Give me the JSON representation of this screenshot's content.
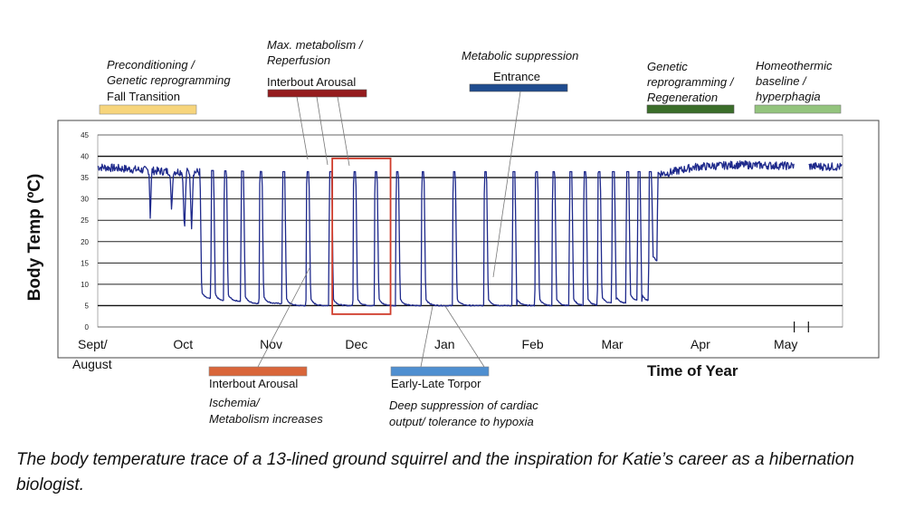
{
  "chart_data": {
    "type": "line",
    "title": "",
    "xlabel": "Time of Year",
    "ylabel": "Body Temp (ºC)",
    "ylim": [
      0,
      45
    ],
    "yticks": [
      0,
      5,
      10,
      15,
      20,
      25,
      30,
      35,
      40,
      45
    ],
    "grid": true,
    "x_month_labels": [
      {
        "month": "Sept/",
        "day": 0
      },
      {
        "month": "Oct",
        "day": 30
      },
      {
        "month": "Nov",
        "day": 61
      },
      {
        "month": "Dec",
        "day": 91
      },
      {
        "month": "Jan",
        "day": 122
      },
      {
        "month": "Feb",
        "day": 153
      },
      {
        "month": "Mar",
        "day": 181
      },
      {
        "month": "Apr",
        "day": 212
      },
      {
        "month": "May",
        "day": 242
      }
    ],
    "x_extra_label": "August",
    "xlim_days": [
      0,
      262
    ],
    "series": [
      {
        "name": "",
        "color": "#1f2a8c",
        "baseline_euthermic": [
          {
            "day": 0,
            "temp": 37.5
          },
          {
            "day": 22,
            "temp": 36.5
          },
          {
            "day": 60,
            "temp": 36.0
          },
          {
            "day": 200,
            "temp": 36.0
          },
          {
            "day": 210,
            "temp": 37.5
          },
          {
            "day": 225,
            "temp": 38.0
          },
          {
            "day": 262,
            "temp": 37.5
          }
        ],
        "shallow_bouts": [
          {
            "day": 18.5,
            "min_temp": 25,
            "width": 1.0
          },
          {
            "day": 26,
            "min_temp": 27,
            "width": 1.2
          },
          {
            "day": 30.5,
            "min_temp": 22,
            "width": 1.4
          },
          {
            "day": 33,
            "min_temp": 23,
            "width": 1.4
          }
        ],
        "torpor_bouts": [
          {
            "start": 36,
            "end": 40,
            "min_temp": 6.5
          },
          {
            "start": 40.8,
            "end": 44.5,
            "min_temp": 6.0
          },
          {
            "start": 45.3,
            "end": 50.5,
            "min_temp": 6.0
          },
          {
            "start": 51.3,
            "end": 57,
            "min_temp": 5.5
          },
          {
            "start": 57.8,
            "end": 65,
            "min_temp": 5.5
          },
          {
            "start": 65.8,
            "end": 73.5,
            "min_temp": 5.0
          },
          {
            "start": 74.3,
            "end": 81.5,
            "min_temp": 5.0
          },
          {
            "start": 82.3,
            "end": 90,
            "min_temp": 5.0
          },
          {
            "start": 90.8,
            "end": 97.5,
            "min_temp": 5.0
          },
          {
            "start": 98.3,
            "end": 105,
            "min_temp": 5.0
          },
          {
            "start": 105.8,
            "end": 114,
            "min_temp": 5.0
          },
          {
            "start": 114.8,
            "end": 125,
            "min_temp": 5.0
          },
          {
            "start": 125.8,
            "end": 136,
            "min_temp": 5.0
          },
          {
            "start": 136.8,
            "end": 146,
            "min_temp": 5.0
          },
          {
            "start": 146.8,
            "end": 154,
            "min_temp": 5.0
          },
          {
            "start": 154.8,
            "end": 160,
            "min_temp": 5.0
          },
          {
            "start": 160.8,
            "end": 166,
            "min_temp": 5.0
          },
          {
            "start": 166.8,
            "end": 171,
            "min_temp": 5.0
          },
          {
            "start": 171.8,
            "end": 176,
            "min_temp": 5.0
          },
          {
            "start": 176.8,
            "end": 181,
            "min_temp": 5.5
          },
          {
            "start": 181.8,
            "end": 186,
            "min_temp": 5.5
          },
          {
            "start": 186.8,
            "end": 190,
            "min_temp": 6.0
          },
          {
            "start": 190.8,
            "end": 194,
            "min_temp": 6.0
          },
          {
            "start": 194.8,
            "end": 197,
            "min_temp": 15.0
          }
        ],
        "data_gaps": [
          {
            "start": 245,
            "end": 250
          }
        ]
      }
    ],
    "highlight_box": {
      "day_start": 82.5,
      "day_end": 103,
      "temp_low": 3,
      "temp_high": 39.5,
      "color": "#cf3b2a"
    },
    "annotations_above": [
      {
        "lines": [
          "Preconditioning /",
          "Genetic reprogramming"
        ],
        "label": "Fall Transition",
        "color": "#f7d57c"
      },
      {
        "lines": [
          "Max. metabolism /",
          "Reperfusion"
        ],
        "label": "Interbout Arousal",
        "color": "#951c1e"
      },
      {
        "lines": [
          "Metabolic suppression"
        ],
        "label": "Entrance",
        "color": "#1f4c8f"
      },
      {
        "lines": [
          "Genetic",
          "reprogramming /",
          "Regeneration"
        ],
        "label": "",
        "color": "#3b6e2a"
      },
      {
        "lines": [
          "Homeothermic",
          "baseline /",
          "hyperphagia"
        ],
        "label": "",
        "color": "#93c47d"
      }
    ],
    "annotations_below": [
      {
        "label": "Interbout Arousal",
        "lines": [
          "Ischemia/",
          "Metabolism increases"
        ],
        "color": "#d9663a"
      },
      {
        "label": "Early-Late Torpor",
        "lines": [
          "Deep suppression of cardiac",
          "output/ tolerance to hypoxia"
        ],
        "color": "#4f8fd0"
      }
    ]
  },
  "caption": "The body temperature trace of a 13-lined ground squirrel and the inspiration for Katie’s career as a hibernation biologist."
}
